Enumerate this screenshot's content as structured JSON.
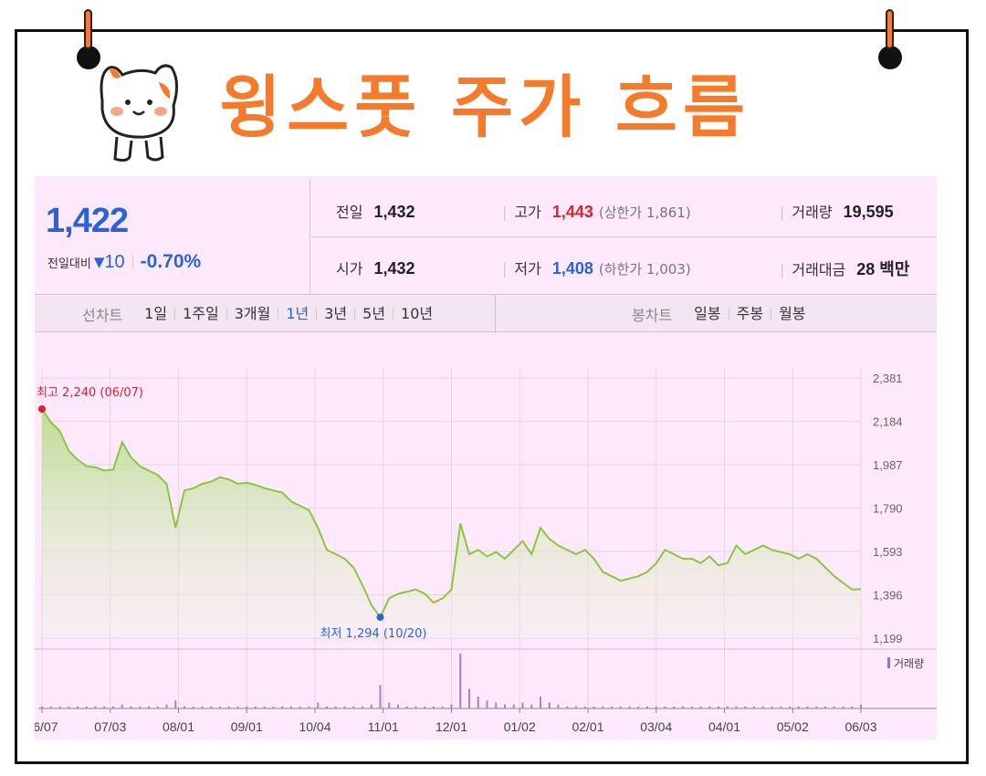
{
  "title": "윙스풋 주가 흐름",
  "quote": {
    "price": "1,422",
    "change_label": "전일대비",
    "change_direction": "▼",
    "change_value": "10",
    "change_percent": "-0.70%",
    "prev_close_label": "전일",
    "prev_close": "1,432",
    "open_label": "시가",
    "open": "1,432",
    "high_label": "고가",
    "high": "1,443",
    "upper_limit": "(상한가 1,861)",
    "low_label": "저가",
    "low": "1,408",
    "lower_limit": "(하한가 1,003)",
    "volume_label": "거래량",
    "volume": "19,595",
    "amount_label": "거래대금",
    "amount": "28 백만"
  },
  "tabs": {
    "line_label": "선차트",
    "line_tabs": [
      "1일",
      "1주일",
      "3개월",
      "1년",
      "3년",
      "5년",
      "10년"
    ],
    "active": "1년",
    "candle_label": "봉차트",
    "candle_tabs": [
      "일봉",
      "주봉",
      "월봉"
    ]
  },
  "colors": {
    "accent": "#f47a2c",
    "up": "#d8232a",
    "down": "#2a63d6",
    "line": "#8cc63f",
    "panel": "#fde9fb"
  },
  "chart_data": {
    "type": "area",
    "ylim": [
      1199,
      2381
    ],
    "y_ticks": [
      "2,381",
      "2,184",
      "1,987",
      "1,790",
      "1,593",
      "1,396",
      "1,199"
    ],
    "x_ticks": [
      "06/07",
      "07/03",
      "08/01",
      "09/01",
      "10/04",
      "11/01",
      "12/01",
      "01/02",
      "02/01",
      "03/04",
      "04/01",
      "05/02",
      "06/03"
    ],
    "max_annotation": "최고 2,240 (06/07)",
    "min_annotation": "최저 1,294 (10/20)",
    "volume_legend": "거래량",
    "series": [
      {
        "values": [
          2240,
          2180,
          2140,
          2050,
          2010,
          1980,
          1975,
          1960,
          1965,
          2090,
          2020,
          1980,
          1960,
          1940,
          1900,
          1700,
          1870,
          1880,
          1900,
          1910,
          1930,
          1920,
          1900,
          1905,
          1895,
          1880,
          1870,
          1860,
          1820,
          1800,
          1780,
          1700,
          1600,
          1580,
          1560,
          1520,
          1440,
          1350,
          1294,
          1380,
          1400,
          1410,
          1420,
          1400,
          1360,
          1380,
          1420,
          1720,
          1580,
          1600,
          1570,
          1590,
          1560,
          1600,
          1640,
          1580,
          1700,
          1650,
          1620,
          1600,
          1580,
          1600,
          1560,
          1500,
          1480,
          1460,
          1470,
          1480,
          1500,
          1540,
          1600,
          1580,
          1560,
          1560,
          1540,
          1570,
          1530,
          1540,
          1620,
          1580,
          1600,
          1620,
          1600,
          1590,
          1580,
          1560,
          1580,
          1560,
          1520,
          1480,
          1450,
          1420,
          1422
        ]
      }
    ],
    "volume": [
      1,
      1,
      1,
      1,
      1,
      1,
      1,
      1,
      1,
      2,
      1,
      1,
      1,
      1,
      2,
      4,
      1,
      1,
      1,
      1,
      1,
      1,
      1,
      1,
      1,
      1,
      1,
      1,
      1,
      1,
      1,
      3,
      1,
      1,
      1,
      1,
      1,
      2,
      12,
      3,
      2,
      1,
      1,
      1,
      1,
      1,
      2,
      28,
      10,
      6,
      4,
      3,
      2,
      2,
      3,
      2,
      6,
      3,
      2,
      1,
      1,
      1,
      1,
      1,
      1,
      1,
      1,
      1,
      1,
      1,
      1,
      1,
      1,
      1,
      1,
      1,
      1,
      1,
      1,
      1,
      1,
      1,
      1,
      1,
      1,
      1,
      1,
      1,
      1,
      1,
      1,
      1,
      2
    ]
  }
}
